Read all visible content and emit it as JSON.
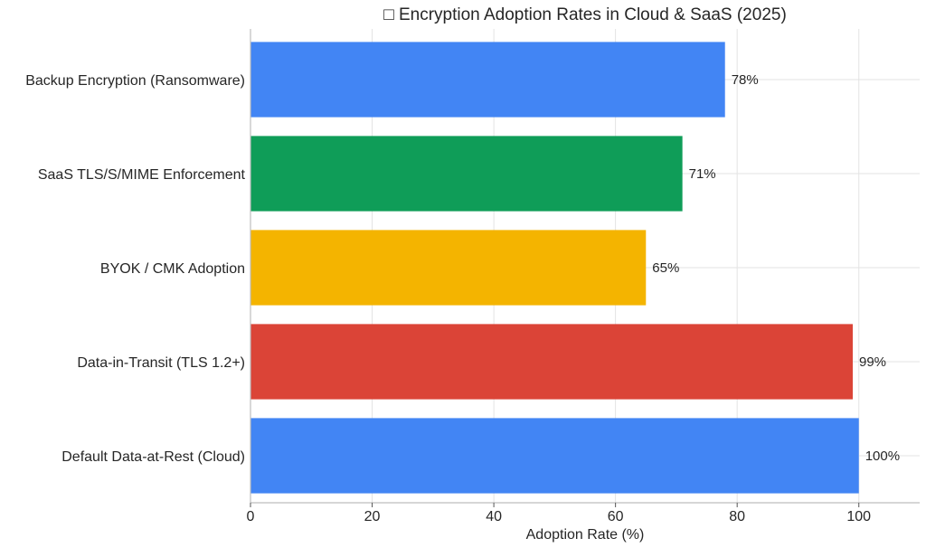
{
  "chart_data": {
    "type": "bar",
    "orientation": "horizontal",
    "title": "□ Encryption Adoption Rates in Cloud & SaaS (2025)",
    "xlabel": "Adoption Rate (%)",
    "ylabel": "",
    "xlim": [
      0,
      110
    ],
    "xticks": [
      0,
      20,
      40,
      60,
      80,
      100
    ],
    "grid": true,
    "categories": [
      "Backup Encryption (Ransomware)",
      "SaaS TLS/S/MIME Enforcement",
      "BYOK / CMK Adoption",
      "Data-in-Transit (TLS 1.2+)",
      "Default Data-at-Rest (Cloud)"
    ],
    "values": [
      78,
      71,
      65,
      99,
      100
    ],
    "value_labels": [
      "78%",
      "71%",
      "65%",
      "99%",
      "100%"
    ],
    "colors": [
      "#4285F4",
      "#0F9D58",
      "#F4B400",
      "#DB4437",
      "#4285F4"
    ]
  }
}
